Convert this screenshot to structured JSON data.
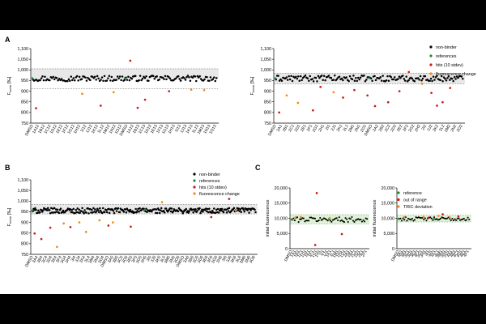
{
  "panel_labels": {
    "A": "A",
    "B": "B",
    "C": "C"
  },
  "colors": {
    "non_binder": "#000000",
    "reference": "#1f8a3a",
    "hit": "#cc1a1a",
    "fluorescence_change": "#f08a1c",
    "band_gray": "#e8e8e8",
    "band_green": "#dff2d8"
  },
  "legends": {
    "A2": [
      {
        "label": "non-binder",
        "color_key": "non_binder"
      },
      {
        "label": "references",
        "color_key": "reference"
      },
      {
        "label": "hits (10 stdev)",
        "color_key": "hit"
      },
      {
        "label": "fluorescence change",
        "color_key": "fluorescence_change"
      }
    ],
    "B": [
      {
        "label": "non-binder",
        "color_key": "non_binder"
      },
      {
        "label": "references",
        "color_key": "reference"
      },
      {
        "label": "hits (10 stdev)",
        "color_key": "hit"
      },
      {
        "label": "fluorescence change",
        "color_key": "fluorescence_change"
      }
    ],
    "C2": [
      {
        "label": "reference",
        "color_key": "reference"
      },
      {
        "label": "out of range",
        "color_key": "hit"
      },
      {
        "label": "TRIC deviation",
        "color_key": "fluorescence_change"
      }
    ]
  },
  "chart_data": [
    {
      "id": "A1",
      "type": "scatter",
      "ylabel": "F",
      "ylabel_sub": "norm",
      "ylabel_unit": " [‰]",
      "yticks": [
        "750",
        "800",
        "850",
        "900",
        "950",
        "1,000",
        "1,050",
        "1,100"
      ],
      "ylim": [
        750,
        1100
      ],
      "xtick_labels": [
        "DMSO",
        "1A12",
        "1B12",
        "1C12",
        "1D12",
        "1E12",
        "1F12",
        "1G12",
        "1H12",
        "1I12",
        "1J12",
        "1K12",
        "1L12",
        "1M12",
        "1N12",
        "1O12",
        "DMSO",
        "1A13",
        "1B13",
        "1C13",
        "1D13",
        "1E13",
        "1F13",
        "1G13",
        "1H13",
        "1I13",
        "1J13",
        "1K13",
        "1L13",
        "1M13",
        "1N13",
        "1O13"
      ],
      "band": [
        958,
        1005
      ],
      "dotted": [
        912,
        1005
      ],
      "center": 960,
      "n": 155,
      "outliers": [
        {
          "x": 0.02,
          "y": 820,
          "cat": "hit"
        },
        {
          "x": 0.27,
          "y": 888,
          "cat": "fluorescence_change"
        },
        {
          "x": 0.37,
          "y": 832,
          "cat": "hit"
        },
        {
          "x": 0.44,
          "y": 895,
          "cat": "fluorescence_change"
        },
        {
          "x": 0.53,
          "y": 1043,
          "cat": "hit"
        },
        {
          "x": 0.57,
          "y": 822,
          "cat": "hit"
        },
        {
          "x": 0.61,
          "y": 860,
          "cat": "hit"
        },
        {
          "x": 0.74,
          "y": 900,
          "cat": "hit"
        },
        {
          "x": 0.86,
          "y": 907,
          "cat": "fluorescence_change"
        },
        {
          "x": 0.93,
          "y": 905,
          "cat": "fluorescence_change"
        }
      ]
    },
    {
      "id": "A2",
      "type": "scatter",
      "ylabel": "F",
      "ylabel_sub": "norm",
      "ylabel_unit": " [‰]",
      "yticks": [
        "750",
        "800",
        "850",
        "900",
        "950",
        "1,000",
        "1,050",
        "1,100"
      ],
      "ylim": [
        750,
        1100
      ],
      "xtick_labels": [
        "DMSO",
        "2A1",
        "2B1",
        "2C1",
        "2D1",
        "2E1",
        "2F1",
        "2G1",
        "2H1",
        "2I1",
        "2J1",
        "2K1",
        "2L1",
        "2M1",
        "2N1",
        "2O1",
        "DMSO",
        "2A2",
        "2B2",
        "2C2",
        "2D2",
        "2E2",
        "2F2",
        "2G2",
        "2H2",
        "2I2",
        "2J2",
        "2K2",
        "2L2",
        "2M2",
        "2N2",
        "2O2"
      ],
      "band": [
        935,
        985
      ],
      "dotted": [
        935,
        985
      ],
      "center": 960,
      "n": 160,
      "outliers": [
        {
          "x": 0.02,
          "y": 800,
          "cat": "hit"
        },
        {
          "x": 0.06,
          "y": 880,
          "cat": "fluorescence_change"
        },
        {
          "x": 0.12,
          "y": 845,
          "cat": "fluorescence_change"
        },
        {
          "x": 0.2,
          "y": 810,
          "cat": "hit"
        },
        {
          "x": 0.24,
          "y": 920,
          "cat": "hit"
        },
        {
          "x": 0.31,
          "y": 895,
          "cat": "fluorescence_change"
        },
        {
          "x": 0.36,
          "y": 870,
          "cat": "hit"
        },
        {
          "x": 0.42,
          "y": 905,
          "cat": "hit"
        },
        {
          "x": 0.49,
          "y": 880,
          "cat": "hit"
        },
        {
          "x": 0.53,
          "y": 830,
          "cat": "hit"
        },
        {
          "x": 0.6,
          "y": 848,
          "cat": "hit"
        },
        {
          "x": 0.66,
          "y": 900,
          "cat": "hit"
        },
        {
          "x": 0.71,
          "y": 990,
          "cat": "hit"
        },
        {
          "x": 0.78,
          "y": 935,
          "cat": "fluorescence_change"
        },
        {
          "x": 0.83,
          "y": 892,
          "cat": "hit"
        },
        {
          "x": 0.86,
          "y": 832,
          "cat": "hit"
        },
        {
          "x": 0.89,
          "y": 848,
          "cat": "hit"
        },
        {
          "x": 0.93,
          "y": 915,
          "cat": "hit"
        }
      ]
    },
    {
      "id": "B",
      "type": "scatter",
      "ylabel": "F",
      "ylabel_sub": "norm",
      "ylabel_unit": " [‰]",
      "yticks": [
        "750",
        "800",
        "850",
        "900",
        "950",
        "1,000",
        "1,050",
        "1,100"
      ],
      "ylim": [
        750,
        1100
      ],
      "xtick_labels": [
        "DMSO",
        "3A4",
        "3B4",
        "3C4",
        "3D4",
        "3E4",
        "3F4",
        "3G4",
        "3H4",
        "3I4",
        "3J4",
        "3K4",
        "3L4",
        "3M4",
        "3N4",
        "3O4",
        "DMSO",
        "3A5",
        "3B5",
        "3C5",
        "3D5",
        "3E5",
        "3F5",
        "3G5",
        "3H5",
        "3I5",
        "3J5",
        "3K5",
        "3L5",
        "3M5",
        "3N5",
        "3O5",
        "DMSO",
        "3A6",
        "3B6",
        "3C6",
        "3D6",
        "3E6",
        "3F6",
        "3G6",
        "3H6",
        "3I6",
        "3J6",
        "3K6",
        "3L6",
        "3M6",
        "3N6",
        "3O6"
      ],
      "band": [
        940,
        985
      ],
      "dotted": [
        940,
        985
      ],
      "center": 955,
      "n": 280,
      "outliers": [
        {
          "x": 0.01,
          "y": 848,
          "cat": "hit"
        },
        {
          "x": 0.04,
          "y": 822,
          "cat": "hit"
        },
        {
          "x": 0.08,
          "y": 875,
          "cat": "hit"
        },
        {
          "x": 0.11,
          "y": 785,
          "cat": "fluorescence_change"
        },
        {
          "x": 0.14,
          "y": 895,
          "cat": "fluorescence_change"
        },
        {
          "x": 0.17,
          "y": 878,
          "cat": "hit"
        },
        {
          "x": 0.21,
          "y": 900,
          "cat": "fluorescence_change"
        },
        {
          "x": 0.24,
          "y": 855,
          "cat": "fluorescence_change"
        },
        {
          "x": 0.3,
          "y": 910,
          "cat": "fluorescence_change"
        },
        {
          "x": 0.34,
          "y": 885,
          "cat": "hit"
        },
        {
          "x": 0.36,
          "y": 900,
          "cat": "fluorescence_change"
        },
        {
          "x": 0.44,
          "y": 880,
          "cat": "hit"
        },
        {
          "x": 0.58,
          "y": 995,
          "cat": "fluorescence_change"
        },
        {
          "x": 0.8,
          "y": 925,
          "cat": "hit"
        },
        {
          "x": 0.88,
          "y": 1010,
          "cat": "hit"
        },
        {
          "x": 0.91,
          "y": 955,
          "cat": "fluorescence_change"
        }
      ]
    },
    {
      "id": "C1",
      "type": "scatter",
      "ylabel": "initial fluorescence",
      "yticks": [
        "0",
        "5,000",
        "10,000",
        "15,000",
        "20,000"
      ],
      "ylim": [
        0,
        20000
      ],
      "xtick_labels": [
        "DMSO",
        "1A1",
        "1B1",
        "1C1",
        "1D1",
        "1E1",
        "1F1",
        "1G1",
        "1H1",
        "1I1",
        "1J1",
        "1K1",
        "1L1",
        "1M1",
        "1N1",
        "1O1",
        "2A1",
        "2B1",
        "2C1",
        "2D1",
        "2E1",
        "2F1"
      ],
      "band": [
        8200,
        11200
      ],
      "dotted": [
        8200,
        11200
      ],
      "center": 9600,
      "n": 60,
      "outliers": [
        {
          "x": 0.33,
          "y": 18300,
          "cat": "hit"
        },
        {
          "x": 0.31,
          "y": 1200,
          "cat": "hit"
        },
        {
          "x": 0.66,
          "y": 4800,
          "cat": "hit"
        },
        {
          "x": 0.05,
          "y": 10300,
          "cat": "fluorescence_change"
        },
        {
          "x": 0.12,
          "y": 10400,
          "cat": "fluorescence_change"
        },
        {
          "x": 0.5,
          "y": 10100,
          "cat": "fluorescence_change"
        }
      ]
    },
    {
      "id": "C2",
      "type": "scatter",
      "ylabel": "initial fluorescence",
      "yticks": [
        "0",
        "5,000",
        "10,000",
        "15,000",
        "20,000"
      ],
      "ylim": [
        0,
        20000
      ],
      "xtick_labels": [
        "DMSO",
        "3A1",
        "3B1",
        "3C1",
        "3D1",
        "3E1",
        "3F1",
        "3G1",
        "3H1",
        "3I1",
        "3J1",
        "3K1",
        "3L1",
        "3M1",
        "3N1",
        "3O1",
        "4A1",
        "4B1",
        "4C1",
        "4D1",
        "4E1",
        "4F1"
      ],
      "band": [
        8800,
        11000
      ],
      "dotted": [
        8800,
        11000
      ],
      "center": 9800,
      "n": 55,
      "outliers": [
        {
          "x": 0.08,
          "y": 10400,
          "cat": "fluorescence_change"
        },
        {
          "x": 0.35,
          "y": 10500,
          "cat": "fluorescence_change"
        },
        {
          "x": 0.42,
          "y": 10200,
          "cat": "hit"
        },
        {
          "x": 0.56,
          "y": 10800,
          "cat": "fluorescence_change"
        },
        {
          "x": 0.62,
          "y": 11300,
          "cat": "hit"
        },
        {
          "x": 0.72,
          "y": 10300,
          "cat": "fluorescence_change"
        },
        {
          "x": 0.84,
          "y": 10600,
          "cat": "hit"
        }
      ]
    }
  ]
}
